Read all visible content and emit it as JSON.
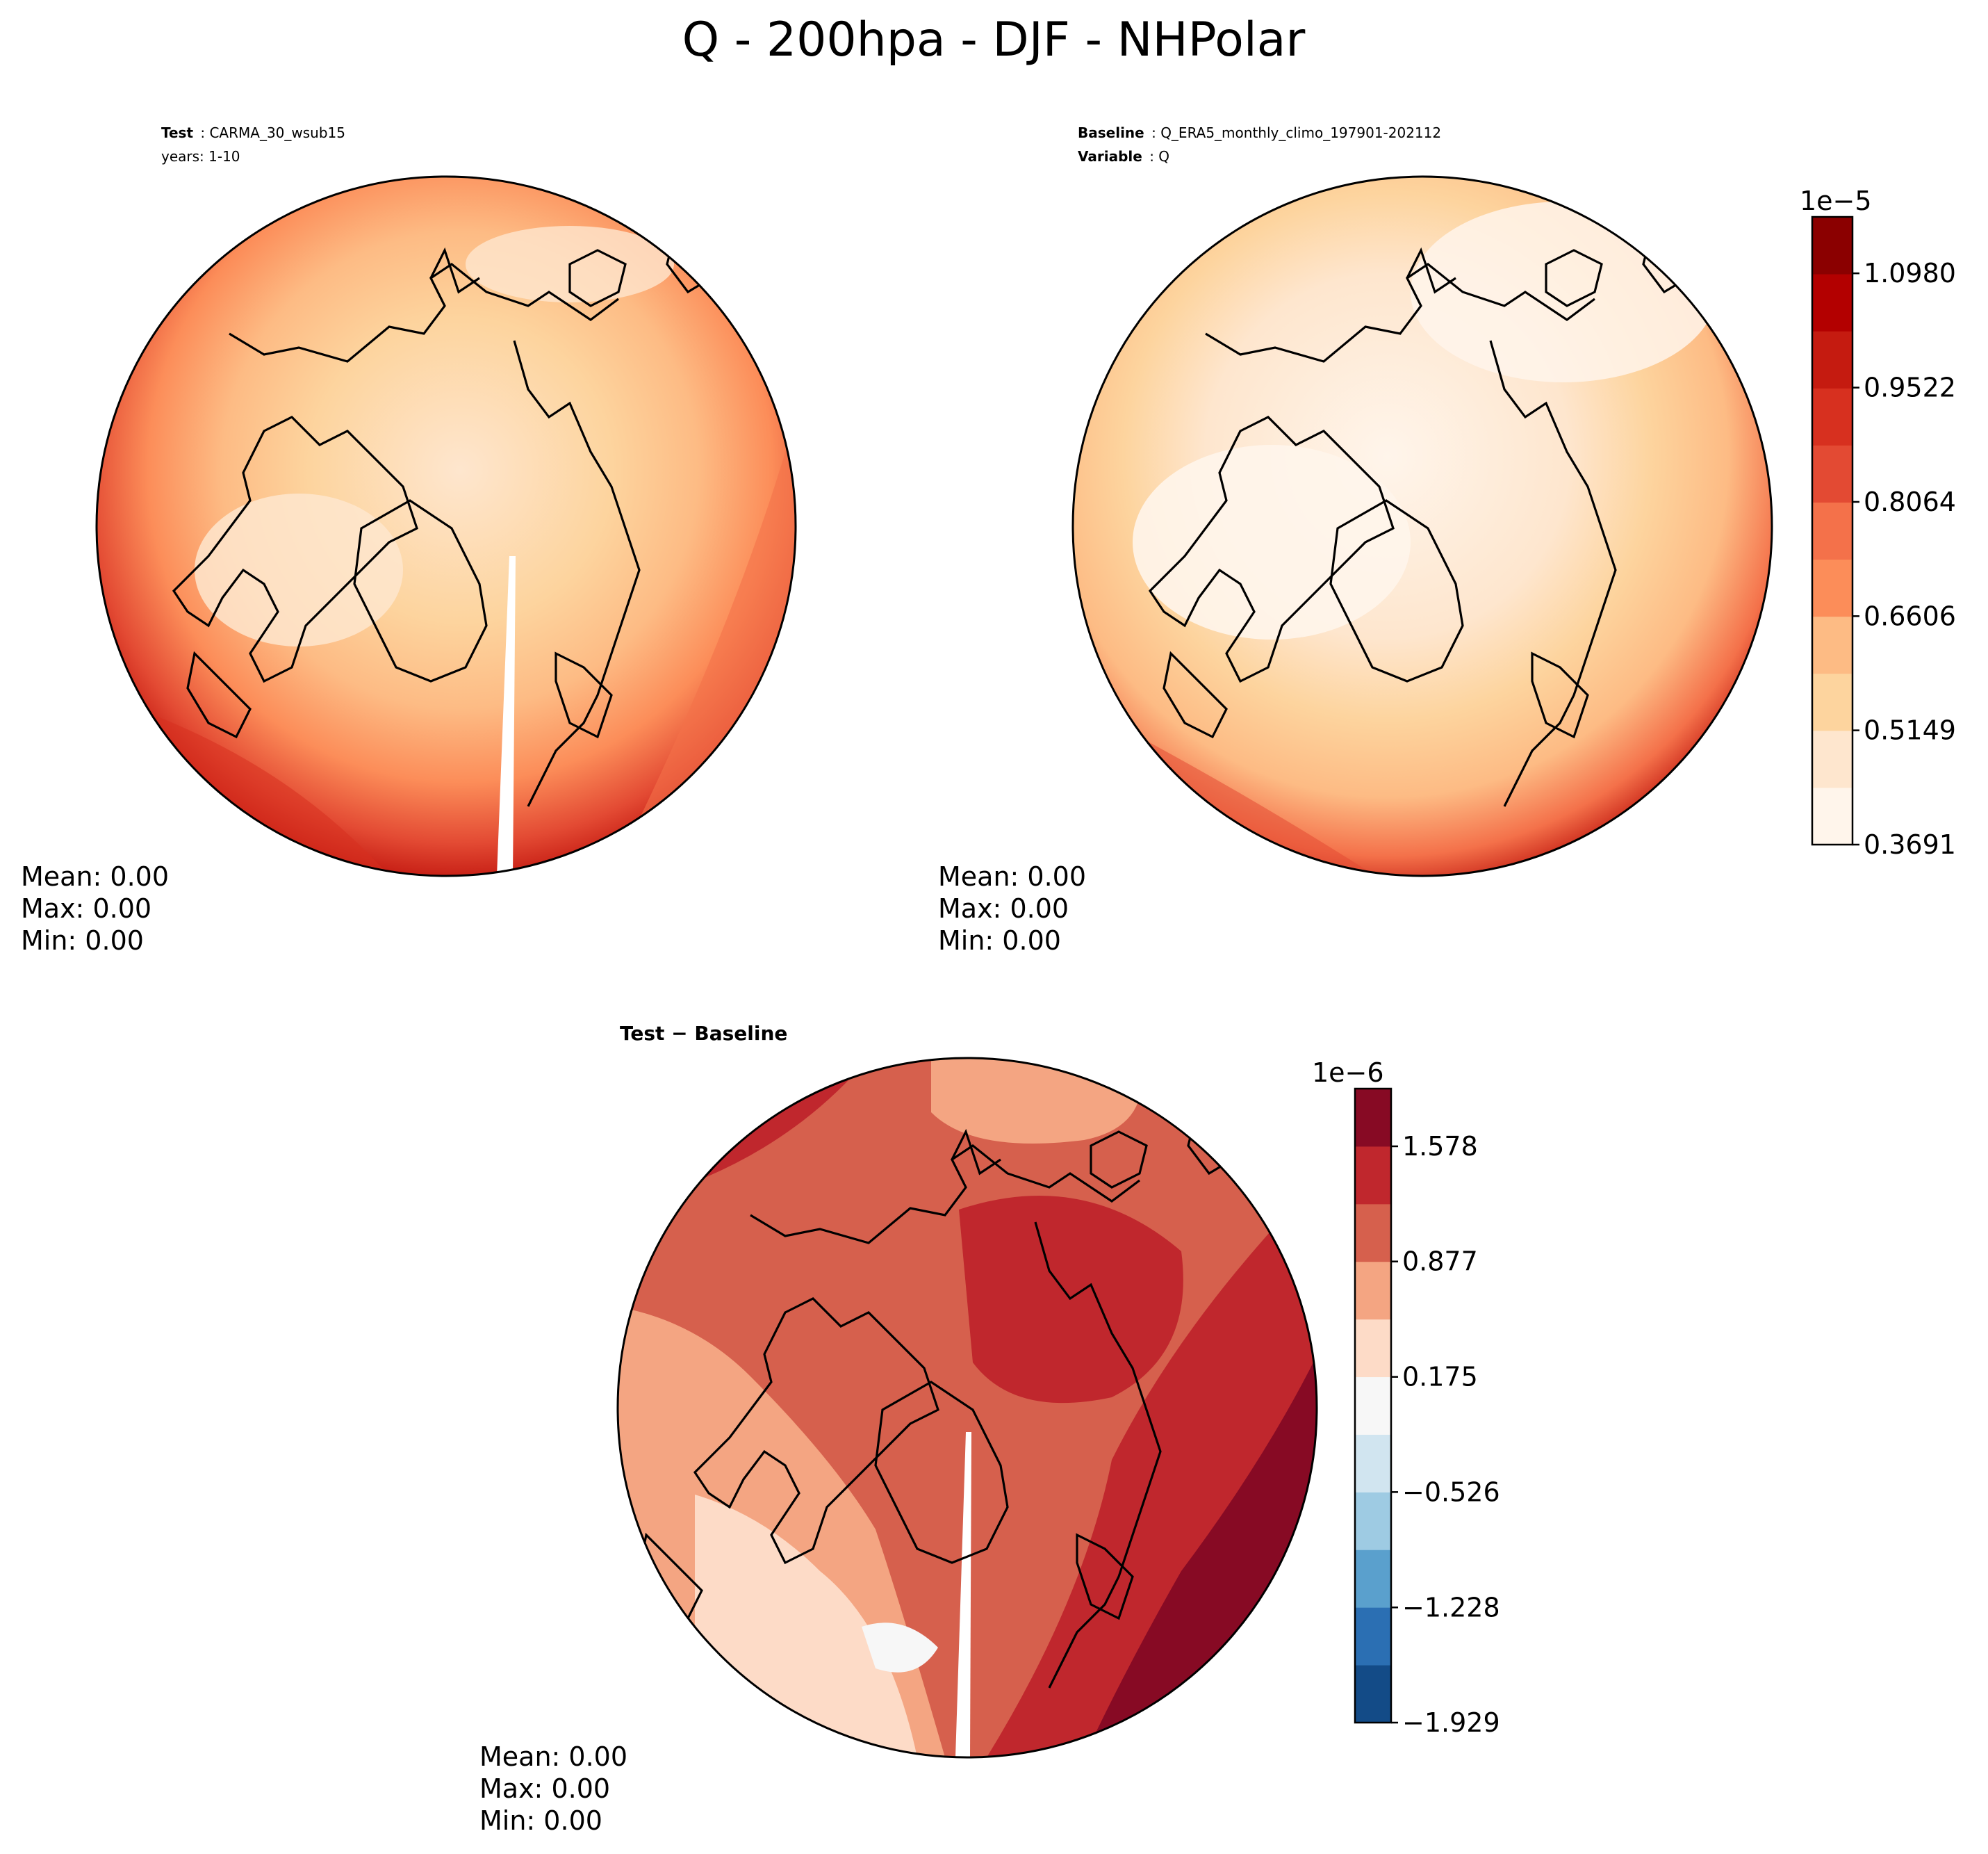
{
  "figure": {
    "title": "Q - 200hpa - DJF - NHPolar"
  },
  "chart_data": [
    {
      "type": "heatmap",
      "panel": "test",
      "header": {
        "line1_label": "Test",
        "line1_value": "CARMA_30_wsub15",
        "line2_value": "years: 1-10"
      },
      "projection": "North Polar Stereographic",
      "variable": "Q",
      "level": "200hpa",
      "season": "DJF",
      "stats": {
        "mean": "Mean:  0.00",
        "max": "Max:  0.00",
        "min": "Min:  0.00"
      },
      "colormap": "Reds (OrRd-like)",
      "levels_scale": "1e−5",
      "field_description": "low values over the Arctic / Canada, increasing toward lower latitudes; maxima along the rim"
    },
    {
      "type": "heatmap",
      "panel": "baseline",
      "header": {
        "line1_label": "Baseline",
        "line1_value": "Q_ERA5_monthly_climo_197901-202112",
        "line2_label": "Variable",
        "line2_value": "Q"
      },
      "projection": "North Polar Stereographic",
      "stats": {
        "mean": "Mean:  0.00",
        "max": "Max:  0.00",
        "min": "Min:  0.00"
      },
      "colorbar": {
        "exponent_label": "1e−5",
        "tick_labels": [
          "0.3691",
          "0.5149",
          "0.6606",
          "0.8064",
          "0.9522",
          "1.0980"
        ],
        "tick_values": [
          0.3691,
          0.5149,
          0.6606,
          0.8064,
          0.9522,
          1.098
        ],
        "range": [
          0.3691,
          1.17
        ],
        "colors": [
          "#fff5eb",
          "#fee6ce",
          "#fdd49e",
          "#fdbb84",
          "#fc8d59",
          "#f4714a",
          "#e34a33",
          "#d7301f",
          "#c51b10",
          "#b30000",
          "#8b0000"
        ]
      }
    },
    {
      "type": "heatmap",
      "panel": "difference",
      "header": {
        "label": "Test − Baseline"
      },
      "projection": "North Polar Stereographic",
      "stats": {
        "mean": "Mean:  0.00",
        "max": "Max:  0.00",
        "min": "Min:  0.00"
      },
      "colorbar": {
        "exponent_label": "1e−6",
        "tick_labels": [
          "−1.929",
          "−1.228",
          "−0.526",
          "0.175",
          "0.877",
          "1.578"
        ],
        "tick_values": [
          -1.929,
          -1.228,
          -0.526,
          0.175,
          0.877,
          1.578
        ],
        "range": [
          -1.929,
          1.929
        ],
        "colors": [
          "#134b87",
          "#2b6fb3",
          "#5aa0cd",
          "#9ecbe3",
          "#d1e5f0",
          "#f7f7f7",
          "#fddbc7",
          "#f4a582",
          "#d6604d",
          "#c0272d",
          "#870a24"
        ]
      }
    }
  ]
}
